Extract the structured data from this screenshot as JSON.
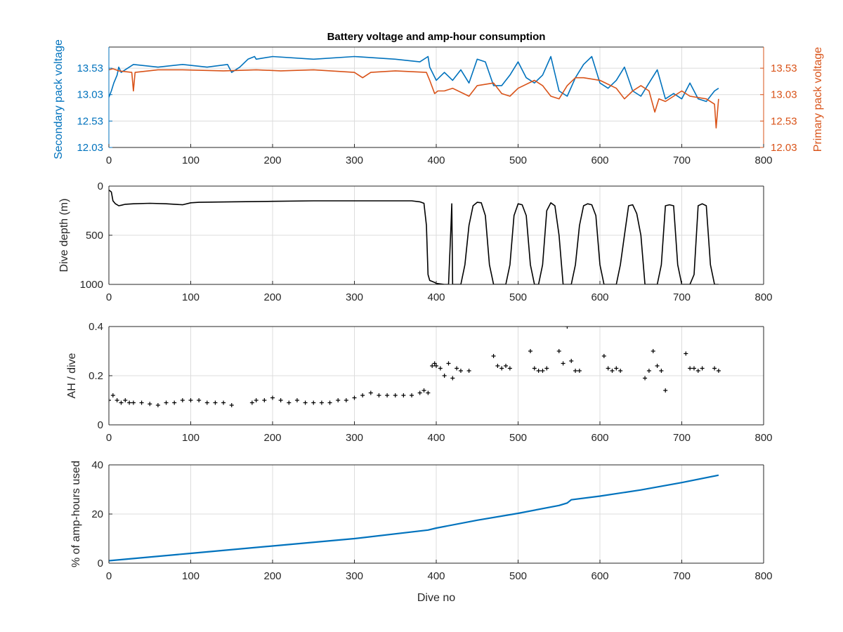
{
  "colors": {
    "blue": "#0072BD",
    "orange": "#D95319",
    "black": "#000000",
    "grid": "#DCDCDC",
    "axis": "#262626"
  },
  "chart_data": [
    {
      "id": "voltage",
      "type": "line",
      "title": "Battery voltage and amp-hour consumption",
      "xlabel": "",
      "ylabel_left": "Secondary pack voltage",
      "ylabel_right": "Primary pack voltage",
      "xlim": [
        0,
        800
      ],
      "ylim": [
        12.03,
        13.93
      ],
      "xticks": [
        "0",
        "100",
        "200",
        "300",
        "400",
        "500",
        "600",
        "700",
        "800"
      ],
      "yticks": [
        "12.03",
        "12.53",
        "13.03",
        "13.53"
      ],
      "grid": true,
      "series": [
        {
          "axis": "left",
          "color": "#0072BD",
          "x": [
            0,
            3,
            6,
            10,
            12,
            15,
            30,
            60,
            90,
            120,
            145,
            150,
            160,
            170,
            178,
            180,
            200,
            250,
            300,
            350,
            380,
            390,
            392,
            400,
            410,
            420,
            430,
            440,
            450,
            460,
            470,
            480,
            490,
            500,
            510,
            520,
            530,
            540,
            550,
            560,
            570,
            580,
            590,
            600,
            610,
            620,
            630,
            640,
            650,
            660,
            670,
            680,
            690,
            700,
            710,
            720,
            730,
            740,
            745
          ],
          "y": [
            12.98,
            13.1,
            13.25,
            13.4,
            13.55,
            13.45,
            13.6,
            13.55,
            13.6,
            13.55,
            13.6,
            13.45,
            13.55,
            13.7,
            13.75,
            13.7,
            13.75,
            13.7,
            13.75,
            13.7,
            13.65,
            13.75,
            13.55,
            13.3,
            13.45,
            13.3,
            13.5,
            13.25,
            13.7,
            13.65,
            13.2,
            13.2,
            13.4,
            13.65,
            13.35,
            13.25,
            13.4,
            13.75,
            13.1,
            13.0,
            13.35,
            13.6,
            13.75,
            13.25,
            13.15,
            13.3,
            13.55,
            13.1,
            13.0,
            13.25,
            13.5,
            12.95,
            13.05,
            12.95,
            13.25,
            12.95,
            12.9,
            13.1,
            13.15
          ]
        },
        {
          "axis": "right",
          "color": "#D95319",
          "x": [
            0,
            5,
            12,
            28,
            30,
            32,
            60,
            90,
            140,
            180,
            210,
            250,
            300,
            310,
            320,
            350,
            388,
            392,
            398,
            402,
            410,
            420,
            440,
            450,
            470,
            480,
            490,
            500,
            520,
            530,
            540,
            550,
            560,
            570,
            580,
            600,
            620,
            630,
            640,
            650,
            660,
            667,
            672,
            680,
            690,
            700,
            710,
            730,
            740,
            742,
            745
          ],
          "y": [
            13.5,
            13.52,
            13.48,
            13.45,
            13.1,
            13.45,
            13.5,
            13.5,
            13.48,
            13.5,
            13.48,
            13.5,
            13.45,
            13.35,
            13.45,
            13.48,
            13.45,
            13.3,
            13.05,
            13.1,
            13.1,
            13.15,
            13.0,
            13.2,
            13.25,
            13.05,
            13.0,
            13.15,
            13.3,
            13.2,
            13.0,
            12.95,
            13.2,
            13.35,
            13.35,
            13.3,
            13.15,
            12.95,
            13.1,
            13.2,
            13.1,
            12.7,
            12.95,
            12.9,
            13.0,
            13.1,
            13.0,
            12.95,
            12.85,
            12.4,
            12.95
          ]
        }
      ]
    },
    {
      "id": "depth",
      "type": "line",
      "ylabel": "Dive depth (m)",
      "xlim": [
        0,
        800
      ],
      "ylim": [
        0,
        1000
      ],
      "yreversed": true,
      "xticks": [
        "0",
        "100",
        "200",
        "300",
        "400",
        "500",
        "600",
        "700",
        "800"
      ],
      "yticks": [
        "0",
        "500",
        "1000"
      ],
      "grid": true,
      "series": [
        {
          "color": "#000000",
          "x": [
            0,
            3,
            5,
            8,
            10,
            12,
            15,
            20,
            30,
            50,
            70,
            90,
            100,
            110,
            150,
            200,
            250,
            300,
            320,
            350,
            370,
            380,
            385,
            388,
            390,
            392,
            395,
            398,
            400,
            410,
            415,
            418,
            419,
            420,
            422,
            425,
            430,
            435,
            440,
            445,
            450,
            455,
            460,
            465,
            470,
            475,
            480,
            485,
            490,
            495,
            500,
            505,
            510,
            515,
            520,
            525,
            530,
            535,
            540,
            545,
            550,
            555,
            560,
            565,
            570,
            575,
            580,
            585,
            590,
            595,
            600,
            605,
            610,
            615,
            620,
            625,
            630,
            635,
            640,
            645,
            650,
            655,
            660,
            665,
            670,
            675,
            680,
            685,
            690,
            695,
            700,
            705,
            710,
            715,
            720,
            725,
            730,
            735,
            740,
            745
          ],
          "y": [
            40,
            60,
            150,
            180,
            190,
            200,
            195,
            185,
            180,
            175,
            180,
            190,
            170,
            165,
            160,
            155,
            150,
            150,
            150,
            150,
            150,
            160,
            175,
            400,
            900,
            960,
            970,
            980,
            990,
            1000,
            1000,
            400,
            180,
            1000,
            1000,
            1000,
            1000,
            800,
            400,
            200,
            165,
            170,
            300,
            800,
            1000,
            1000,
            1000,
            1000,
            800,
            300,
            180,
            190,
            300,
            800,
            1000,
            1000,
            800,
            250,
            170,
            200,
            500,
            1000,
            1000,
            1000,
            800,
            400,
            200,
            180,
            190,
            300,
            800,
            1000,
            1000,
            1000,
            1000,
            800,
            500,
            200,
            190,
            280,
            500,
            1000,
            1000,
            1000,
            1000,
            800,
            200,
            190,
            200,
            800,
            1000,
            1000,
            1000,
            900,
            200,
            180,
            200,
            800,
            1000,
            1000
          ]
        }
      ]
    },
    {
      "id": "ahperdive",
      "type": "scatter",
      "ylabel": "AH / dive",
      "xlim": [
        0,
        800
      ],
      "ylim": [
        0,
        0.4
      ],
      "xticks": [
        "0",
        "100",
        "200",
        "300",
        "400",
        "500",
        "600",
        "700",
        "800"
      ],
      "yticks": [
        "0",
        "0.2",
        "0.4"
      ],
      "grid": true,
      "series": [
        {
          "color": "#000000",
          "x": [
            0,
            5,
            10,
            15,
            20,
            25,
            30,
            40,
            50,
            60,
            70,
            80,
            90,
            100,
            110,
            120,
            130,
            140,
            150,
            175,
            180,
            190,
            200,
            210,
            220,
            230,
            240,
            250,
            260,
            270,
            280,
            290,
            300,
            310,
            320,
            330,
            340,
            350,
            360,
            370,
            380,
            385,
            390,
            395,
            398,
            400,
            405,
            410,
            415,
            420,
            425,
            430,
            440,
            470,
            475,
            480,
            485,
            490,
            515,
            520,
            525,
            530,
            535,
            550,
            555,
            560,
            565,
            570,
            575,
            605,
            610,
            615,
            620,
            625,
            655,
            660,
            665,
            670,
            675,
            680,
            705,
            710,
            715,
            720,
            725,
            740,
            745
          ],
          "y": [
            0.1,
            0.12,
            0.1,
            0.09,
            0.1,
            0.09,
            0.09,
            0.09,
            0.085,
            0.08,
            0.09,
            0.09,
            0.1,
            0.1,
            0.1,
            0.09,
            0.09,
            0.09,
            0.08,
            0.09,
            0.1,
            0.1,
            0.11,
            0.1,
            0.09,
            0.1,
            0.09,
            0.09,
            0.09,
            0.09,
            0.1,
            0.1,
            0.11,
            0.12,
            0.13,
            0.12,
            0.12,
            0.12,
            0.12,
            0.12,
            0.13,
            0.14,
            0.13,
            0.24,
            0.25,
            0.24,
            0.23,
            0.2,
            0.25,
            0.19,
            0.23,
            0.22,
            0.22,
            0.28,
            0.24,
            0.23,
            0.24,
            0.23,
            0.3,
            0.23,
            0.22,
            0.22,
            0.23,
            0.3,
            0.25,
            0.4,
            0.26,
            0.22,
            0.22,
            0.28,
            0.23,
            0.22,
            0.23,
            0.22,
            0.19,
            0.22,
            0.3,
            0.24,
            0.22,
            0.14,
            0.29,
            0.23,
            0.23,
            0.22,
            0.23,
            0.23,
            0.22
          ]
        }
      ]
    },
    {
      "id": "percentused",
      "type": "line",
      "ylabel": "% of amp-hours used",
      "xlabel": "Dive no",
      "xlim": [
        0,
        800
      ],
      "ylim": [
        0,
        40
      ],
      "xticks": [
        "0",
        "100",
        "200",
        "300",
        "400",
        "500",
        "600",
        "700",
        "800"
      ],
      "yticks": [
        "0",
        "20",
        "40"
      ],
      "grid": true,
      "series": [
        {
          "color": "#0072BD",
          "x": [
            0,
            100,
            200,
            300,
            390,
            400,
            450,
            500,
            550,
            560,
            565,
            600,
            650,
            700,
            745
          ],
          "y": [
            1.0,
            4.0,
            7.0,
            10.0,
            13.5,
            14.3,
            17.5,
            20.3,
            23.5,
            24.5,
            25.8,
            27.3,
            29.8,
            32.8,
            35.8
          ]
        }
      ]
    }
  ]
}
